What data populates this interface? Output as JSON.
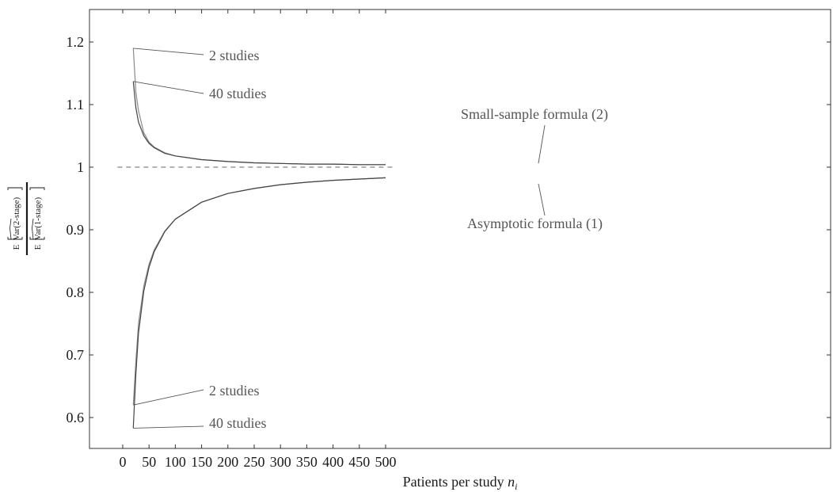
{
  "chart_data": {
    "type": "line",
    "xlabel_base": "Patients per study",
    "xlabel_var": "n",
    "xlabel_sub": "i",
    "ylabel": {
      "prefix": "E",
      "numerator": "Var(2-stage)",
      "denominator": "Var(1-stage)"
    },
    "xlim": [
      -25,
      520
    ],
    "ylim": [
      0.55,
      1.25
    ],
    "xticks": [
      0,
      50,
      100,
      150,
      200,
      250,
      300,
      350,
      400,
      450,
      500
    ],
    "xtick_labels": [
      "0",
      "50",
      "100",
      "150",
      "200",
      "250",
      "300",
      "350",
      "400",
      "450",
      "500"
    ],
    "yticks": [
      0.6,
      0.7,
      0.8,
      0.9,
      1.0,
      1.1,
      1.2
    ],
    "ytick_labels": [
      "0.6",
      "0.7",
      "0.8",
      "0.9",
      "1",
      "1.1",
      "1.2"
    ],
    "reference_line": {
      "y": 1,
      "style": "dashed"
    },
    "x": [
      20,
      25,
      30,
      40,
      50,
      60,
      80,
      100,
      150,
      200,
      250,
      300,
      350,
      400,
      450,
      500
    ],
    "series": [
      {
        "group": "small-sample",
        "studies": 2,
        "values": [
          1.19,
          1.12,
          1.09,
          1.055,
          1.04,
          1.032,
          1.023,
          1.018,
          1.012,
          1.009,
          1.007,
          1.006,
          1.005,
          1.005,
          1.004,
          1.004
        ]
      },
      {
        "group": "small-sample",
        "studies": 40,
        "values": [
          1.137,
          1.095,
          1.072,
          1.05,
          1.038,
          1.031,
          1.022,
          1.018,
          1.012,
          1.009,
          1.007,
          1.006,
          1.005,
          1.005,
          1.004,
          1.004
        ]
      },
      {
        "group": "asymptotic",
        "studies": 2,
        "values": [
          0.62,
          0.69,
          0.75,
          0.81,
          0.845,
          0.868,
          0.898,
          0.917,
          0.944,
          0.958,
          0.966,
          0.972,
          0.976,
          0.979,
          0.981,
          0.983
        ]
      },
      {
        "group": "asymptotic",
        "studies": 40,
        "values": [
          0.583,
          0.67,
          0.735,
          0.802,
          0.84,
          0.865,
          0.897,
          0.917,
          0.944,
          0.958,
          0.966,
          0.972,
          0.976,
          0.979,
          0.981,
          0.983
        ]
      }
    ],
    "annotations": {
      "small_2": "2 studies",
      "small_40": "40 studies",
      "small_formula": "Small-sample formula (2)",
      "asym_formula": "Asymptotic formula (1)",
      "asym_2": "2 studies",
      "asym_40": "40 studies"
    },
    "grid": false,
    "legend": "none"
  }
}
